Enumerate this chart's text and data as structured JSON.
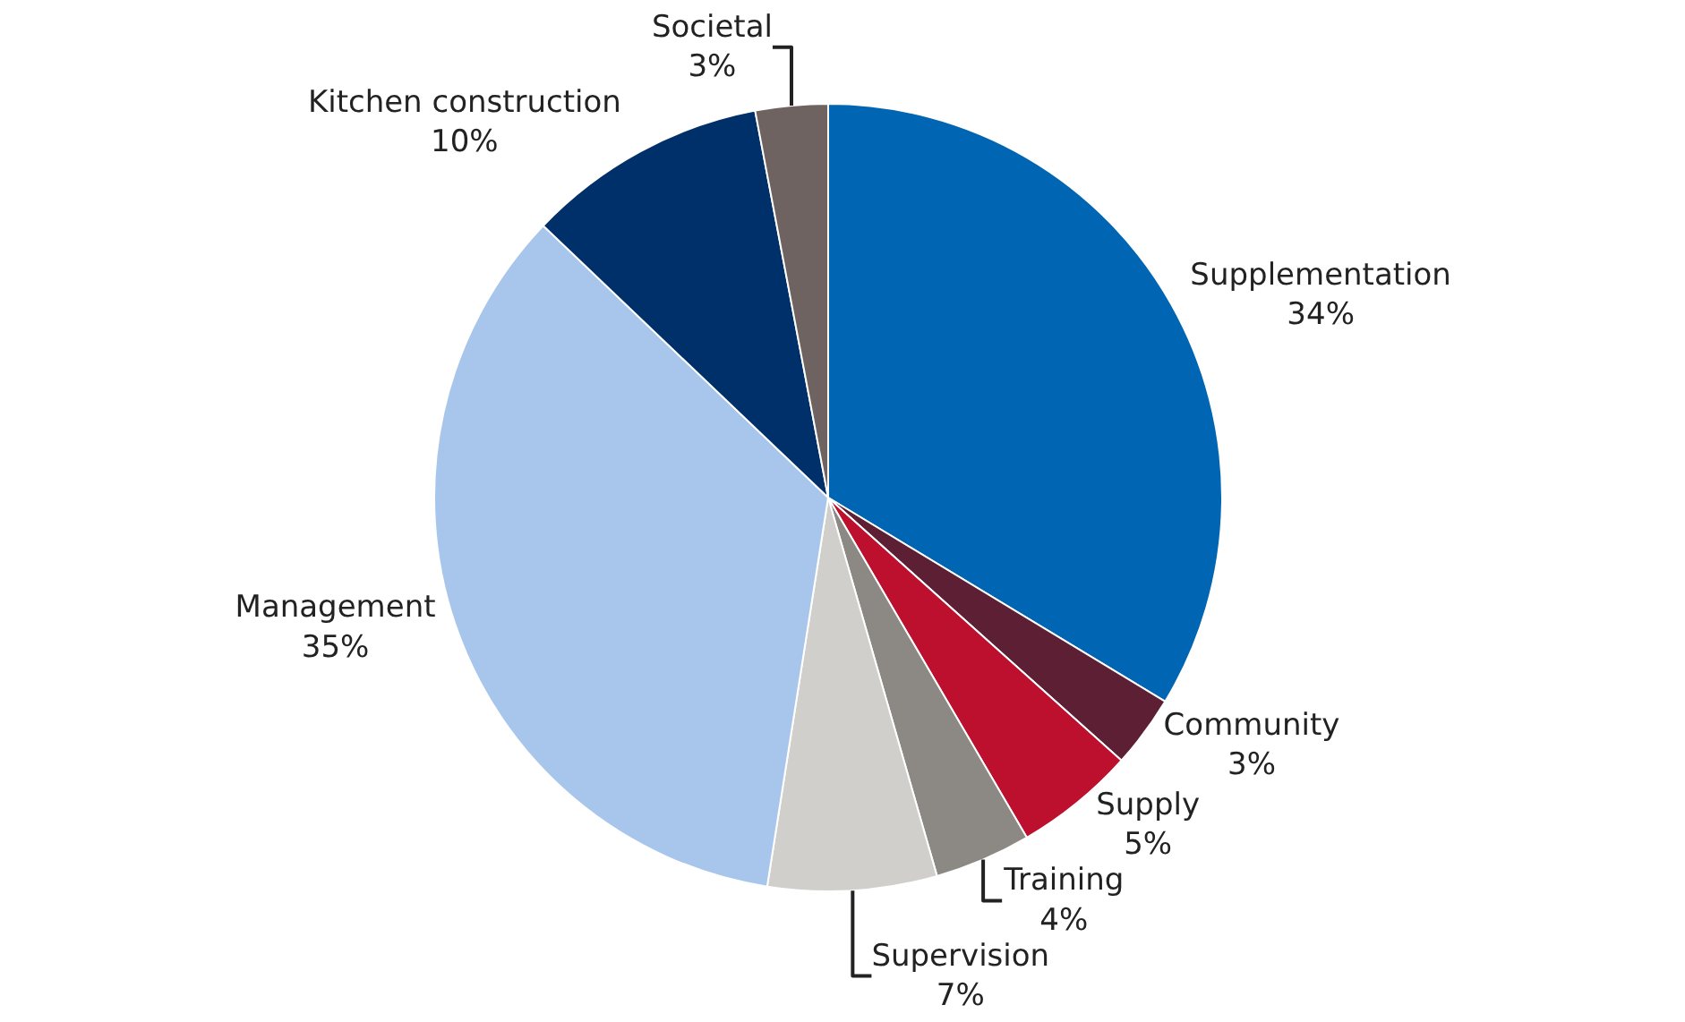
{
  "chart_data": {
    "type": "pie",
    "categories": [
      "Supplementation",
      "Community",
      "Supply",
      "Training",
      "Supervision",
      "Management",
      "Kitchen construction",
      "Societal"
    ],
    "values": [
      34,
      3,
      5,
      4,
      7,
      35,
      10,
      3
    ],
    "value_labels": [
      "34%",
      "3%",
      "5%",
      "4%",
      "7%",
      "35%",
      "10%",
      "3%"
    ],
    "colors": [
      "#0066b3",
      "#5c1f33",
      "#bd0f2e",
      "#8c8984",
      "#d0cfcb",
      "#a8c6ec",
      "#00306a",
      "#6e6360"
    ],
    "legend": false
  }
}
